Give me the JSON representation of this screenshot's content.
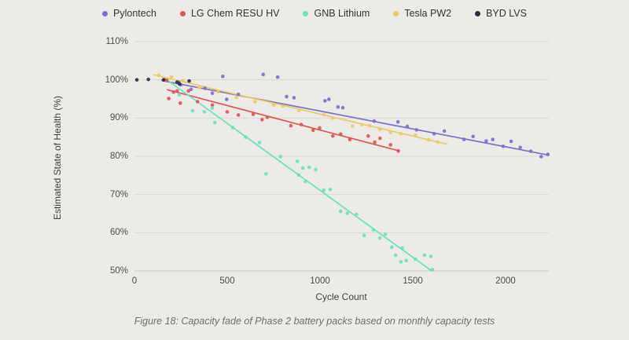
{
  "caption": "Figure 18: Capacity fade of Phase 2 battery packs based on monthly capacity tests",
  "colors": {
    "background": "#edebe8",
    "gridline": "#d9d7d4",
    "axis_line": "#c9c7c4"
  },
  "chart_data": {
    "type": "scatter",
    "title": "",
    "xlabel": "Cycle Count",
    "ylabel": "Estimated State of Health (%)",
    "x_ticks": [
      0,
      500,
      1000,
      1500,
      2000
    ],
    "y_tick_labels": [
      "110%",
      "100%",
      "90%",
      "80%",
      "70%",
      "60%",
      "50%"
    ],
    "xlim": [
      0,
      2233
    ],
    "ylim": [
      50,
      110
    ],
    "grid": true,
    "legend_position": "top",
    "series": [
      {
        "name": "Pylontech",
        "color": "#7b72c8",
        "trend": [
          [
            148,
            99.8
          ],
          [
            2233,
            80.3
          ]
        ],
        "points": [
          [
            240,
            99.3
          ],
          [
            250,
            98.7
          ],
          [
            305,
            97.5
          ],
          [
            380,
            97.8
          ],
          [
            420,
            96.5
          ],
          [
            476,
            100.9
          ],
          [
            497,
            94.9
          ],
          [
            560,
            96.2
          ],
          [
            694,
            101.4
          ],
          [
            772,
            100.7
          ],
          [
            820,
            95.6
          ],
          [
            860,
            95.3
          ],
          [
            1027,
            94.5
          ],
          [
            1048,
            94.9
          ],
          [
            1097,
            92.9
          ],
          [
            1123,
            92.7
          ],
          [
            1292,
            89.2
          ],
          [
            1420,
            89.0
          ],
          [
            1470,
            87.8
          ],
          [
            1520,
            86.9
          ],
          [
            1615,
            85.9
          ],
          [
            1670,
            86.6
          ],
          [
            1776,
            84.4
          ],
          [
            1825,
            85.2
          ],
          [
            1896,
            84.0
          ],
          [
            1931,
            84.4
          ],
          [
            1987,
            82.6
          ],
          [
            2030,
            83.9
          ],
          [
            2079,
            82.3
          ],
          [
            2136,
            81.3
          ],
          [
            2192,
            79.9
          ],
          [
            2228,
            80.5
          ]
        ]
      },
      {
        "name": "LG Chem RESU HV",
        "color": "#e05557",
        "trend": [
          [
            178,
            97.4
          ],
          [
            1419,
            81.5
          ]
        ],
        "points": [
          [
            160,
            100.0
          ],
          [
            174,
            99.9
          ],
          [
            185,
            95.1
          ],
          [
            211,
            96.8
          ],
          [
            230,
            97.1
          ],
          [
            247,
            93.9
          ],
          [
            291,
            97.1
          ],
          [
            340,
            94.3
          ],
          [
            420,
            93.4
          ],
          [
            500,
            91.6
          ],
          [
            560,
            90.8
          ],
          [
            640,
            91.0
          ],
          [
            688,
            89.6
          ],
          [
            716,
            90.2
          ],
          [
            843,
            88.0
          ],
          [
            899,
            88.3
          ],
          [
            963,
            86.8
          ],
          [
            998,
            87.4
          ],
          [
            1069,
            85.3
          ],
          [
            1111,
            85.8
          ],
          [
            1161,
            84.4
          ],
          [
            1260,
            85.3
          ],
          [
            1295,
            83.7
          ],
          [
            1323,
            84.7
          ],
          [
            1380,
            83.0
          ],
          [
            1422,
            81.4
          ]
        ]
      },
      {
        "name": "GNB Lithium",
        "color": "#6ce0bd",
        "trend": [
          [
            178,
            99.9
          ],
          [
            1602,
            50.0
          ]
        ],
        "points": [
          [
            241,
            96.1
          ],
          [
            313,
            91.9
          ],
          [
            377,
            91.6
          ],
          [
            419,
            92.6
          ],
          [
            433,
            88.8
          ],
          [
            530,
            87.5
          ],
          [
            600,
            85.0
          ],
          [
            674,
            83.6
          ],
          [
            709,
            75.4
          ],
          [
            787,
            79.9
          ],
          [
            878,
            78.7
          ],
          [
            885,
            75.1
          ],
          [
            907,
            76.9
          ],
          [
            921,
            73.4
          ],
          [
            942,
            77.1
          ],
          [
            977,
            76.5
          ],
          [
            1020,
            71.1
          ],
          [
            1055,
            71.3
          ],
          [
            1111,
            65.6
          ],
          [
            1147,
            65.1
          ],
          [
            1196,
            64.8
          ],
          [
            1238,
            59.3
          ],
          [
            1288,
            60.7
          ],
          [
            1323,
            58.6
          ],
          [
            1352,
            59.6
          ],
          [
            1387,
            56.2
          ],
          [
            1408,
            54.1
          ],
          [
            1436,
            52.4
          ],
          [
            1443,
            56.0
          ],
          [
            1465,
            52.7
          ],
          [
            1514,
            53.1
          ],
          [
            1563,
            54.1
          ],
          [
            1598,
            53.8
          ],
          [
            1606,
            50.3
          ]
        ]
      },
      {
        "name": "Tesla PW2",
        "color": "#eaca66",
        "trend": [
          [
            106,
            101.3
          ],
          [
            1682,
            83.2
          ]
        ],
        "points": [
          [
            130,
            101.2
          ],
          [
            200,
            100.8
          ],
          [
            260,
            99.8
          ],
          [
            350,
            98.0
          ],
          [
            450,
            96.9
          ],
          [
            550,
            95.4
          ],
          [
            650,
            94.3
          ],
          [
            751,
            93.4
          ],
          [
            801,
            93.1
          ],
          [
            886,
            92.0
          ],
          [
            1020,
            90.9
          ],
          [
            1069,
            90.0
          ],
          [
            1175,
            87.9
          ],
          [
            1225,
            88.3
          ],
          [
            1267,
            88.0
          ],
          [
            1323,
            87.1
          ],
          [
            1380,
            86.3
          ],
          [
            1436,
            85.9
          ],
          [
            1514,
            85.5
          ],
          [
            1585,
            84.3
          ],
          [
            1634,
            83.7
          ]
        ]
      },
      {
        "name": "BYD LVS",
        "color": "#2e2d47",
        "trend": null,
        "points": [
          [
            13,
            100.0
          ],
          [
            75,
            100.1
          ],
          [
            157,
            100.0
          ],
          [
            230,
            99.4
          ],
          [
            243,
            98.9
          ],
          [
            295,
            99.7
          ]
        ]
      }
    ]
  }
}
